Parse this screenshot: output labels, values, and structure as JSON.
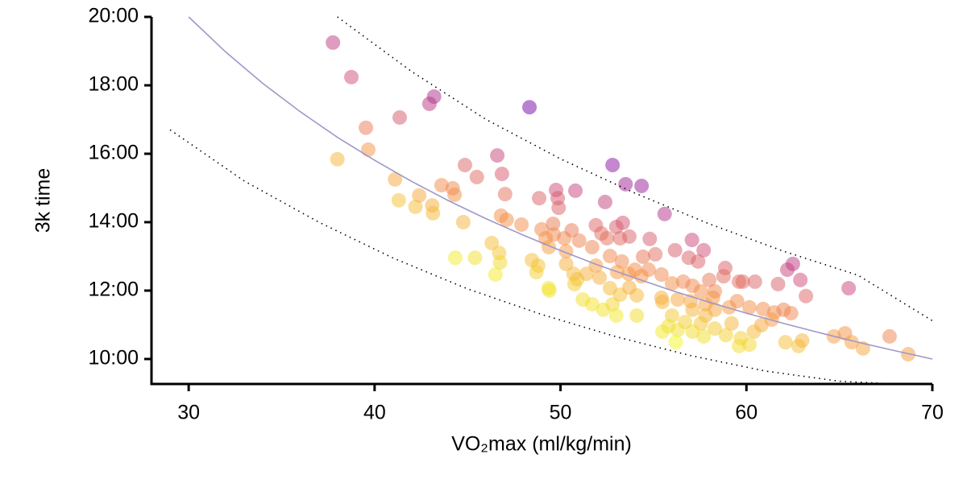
{
  "chart_data": {
    "type": "scatter",
    "x_label": "VO₂max (ml/kg/min)",
    "y_label": "3k time",
    "xlim": [
      28,
      70
    ],
    "ylim": [
      9.27,
      20
    ],
    "xticks": [
      30,
      40,
      50,
      60,
      70
    ],
    "yticks": [
      {
        "value": 10,
        "label": "10:00"
      },
      {
        "value": 12,
        "label": "12:00"
      },
      {
        "value": 14,
        "label": "14:00"
      },
      {
        "value": 16,
        "label": "16:00"
      },
      {
        "value": 18,
        "label": "18:00"
      },
      {
        "value": 20,
        "label": "20:00"
      }
    ],
    "grid": false,
    "series": [
      {
        "type": "scatter",
        "colormap": "plasma",
        "opacity": 0.5,
        "x": [
          37.76,
          38.75,
          43.2,
          42.95,
          48.33,
          39.53,
          41.35,
          39.66,
          38.0,
          46.6,
          43.6,
          44.86,
          45.5,
          44.2,
          44.3,
          46.85,
          47.02,
          41.1,
          41.3,
          42.4,
          43.1,
          42.2,
          43.14,
          44.77,
          52.8,
          53.5,
          54.36,
          50.8,
          49.76,
          49.85,
          48.85,
          52.4,
          49.9,
          55.6,
          46.8,
          47.1,
          47.9,
          49.6,
          48.98,
          50.6,
          51.9,
          53.35,
          53.0,
          52.2,
          49.63,
          49.2,
          50.2,
          51.0,
          52.5,
          53.2,
          53.7,
          54.8,
          49.37,
          50.3,
          51.7,
          52.66,
          53.3,
          54.44,
          55.1,
          56.16,
          57.07,
          57.7,
          56.9,
          57.4,
          46.3,
          46.7,
          46.75,
          46.5,
          44.34,
          45.4,
          48.46,
          48.8,
          48.7,
          49.36,
          50.3,
          50.7,
          50.9,
          51.9,
          52.1,
          53.05,
          53.66,
          54.0,
          54.35,
          54.74,
          55.43,
          58.86,
          58.77,
          59.8,
          59.6,
          60.46,
          61.7,
          62.2,
          62.5,
          62.9,
          63.2,
          65.5,
          56.0,
          56.6,
          57.1,
          58.0,
          57.55,
          58.3,
          58.2,
          57.8,
          57.0,
          56.3,
          55.48,
          57.1,
          57.8,
          58.3,
          59.07,
          59.5,
          60.16,
          60.9,
          61.5,
          62.0,
          62.4,
          61.36,
          60.8,
          60.4,
          59.7,
          59.6,
          60.16,
          62.1,
          62.8,
          63.0,
          64.7,
          65.3,
          65.66,
          66.27,
          67.7,
          68.7,
          51.2,
          51.7,
          52.3,
          52.8,
          53.2,
          54.1,
          53.0,
          54.1,
          49.4,
          52.66,
          53.7,
          55.43,
          56.0,
          56.7,
          57.55,
          58.3,
          57.1,
          57.7,
          56.3,
          55.48,
          55.8,
          56.2,
          58.9,
          59.2,
          51.4,
          50.75
        ],
        "values": [
          19.25,
          18.24,
          17.67,
          17.46,
          17.36,
          16.76,
          17.06,
          16.12,
          15.84,
          15.95,
          15.08,
          15.67,
          15.32,
          14.99,
          14.8,
          15.41,
          14.82,
          15.25,
          14.64,
          14.78,
          14.49,
          14.45,
          14.26,
          14.0,
          15.67,
          15.11,
          15.06,
          14.92,
          14.94,
          14.7,
          14.7,
          14.59,
          14.42,
          14.24,
          14.19,
          14.07,
          13.93,
          13.95,
          13.79,
          13.76,
          13.91,
          13.98,
          13.86,
          13.67,
          13.64,
          13.53,
          13.53,
          13.46,
          13.53,
          13.53,
          13.58,
          13.51,
          13.27,
          13.15,
          13.27,
          13.01,
          12.85,
          12.99,
          13.06,
          13.18,
          13.48,
          13.18,
          12.96,
          12.85,
          13.39,
          13.1,
          12.82,
          12.47,
          12.96,
          12.96,
          12.89,
          12.73,
          12.54,
          12.07,
          12.78,
          12.49,
          12.33,
          12.73,
          12.38,
          12.54,
          12.49,
          12.61,
          12.42,
          12.61,
          12.47,
          12.66,
          12.42,
          12.26,
          12.26,
          12.26,
          12.19,
          12.61,
          12.78,
          12.31,
          11.84,
          12.07,
          12.21,
          12.26,
          12.14,
          12.31,
          11.98,
          11.98,
          11.79,
          11.6,
          11.69,
          11.74,
          11.67,
          11.44,
          11.27,
          11.44,
          11.51,
          11.69,
          11.51,
          11.46,
          11.36,
          11.44,
          11.34,
          11.15,
          10.99,
          10.8,
          10.61,
          10.38,
          10.42,
          10.49,
          10.38,
          10.54,
          10.66,
          10.75,
          10.49,
          10.31,
          10.66,
          10.14,
          11.74,
          11.6,
          11.44,
          11.6,
          11.88,
          11.86,
          11.27,
          11.27,
          12.0,
          12.07,
          12.09,
          11.79,
          11.27,
          11.08,
          11.04,
          10.89,
          10.8,
          10.66,
          10.85,
          10.8,
          10.96,
          10.49,
          10.7,
          11.04,
          12.49,
          12.19
        ]
      },
      {
        "type": "line",
        "style": "solid",
        "color": "#9e98c9",
        "x": [
          30,
          32,
          34,
          36,
          38,
          40,
          42,
          44,
          46,
          48,
          50,
          52,
          54,
          56,
          58,
          60,
          62,
          64,
          66,
          68,
          70
        ],
        "values": [
          20,
          18.97,
          18.05,
          17.23,
          16.48,
          15.81,
          15.19,
          14.62,
          14.1,
          13.62,
          13.17,
          12.75,
          12.37,
          12.0,
          11.66,
          11.34,
          11.04,
          10.76,
          10.49,
          10.24,
          10.0
        ]
      },
      {
        "type": "line",
        "style": "dotted",
        "color": "#000000",
        "x": [
          38,
          42,
          46,
          50,
          54,
          58,
          62,
          66,
          70
        ],
        "values": [
          20.0,
          18.4,
          17.0,
          15.85,
          14.85,
          13.95,
          13.15,
          12.45,
          11.12
        ]
      },
      {
        "type": "line",
        "style": "dotted",
        "color": "#000000",
        "x": [
          29,
          33,
          37,
          41,
          45,
          49,
          53,
          57,
          61,
          65,
          68
        ],
        "values": [
          16.7,
          15.2,
          14.0,
          12.95,
          12.05,
          11.3,
          10.65,
          10.1,
          9.65,
          9.35,
          9.27
        ]
      }
    ]
  }
}
